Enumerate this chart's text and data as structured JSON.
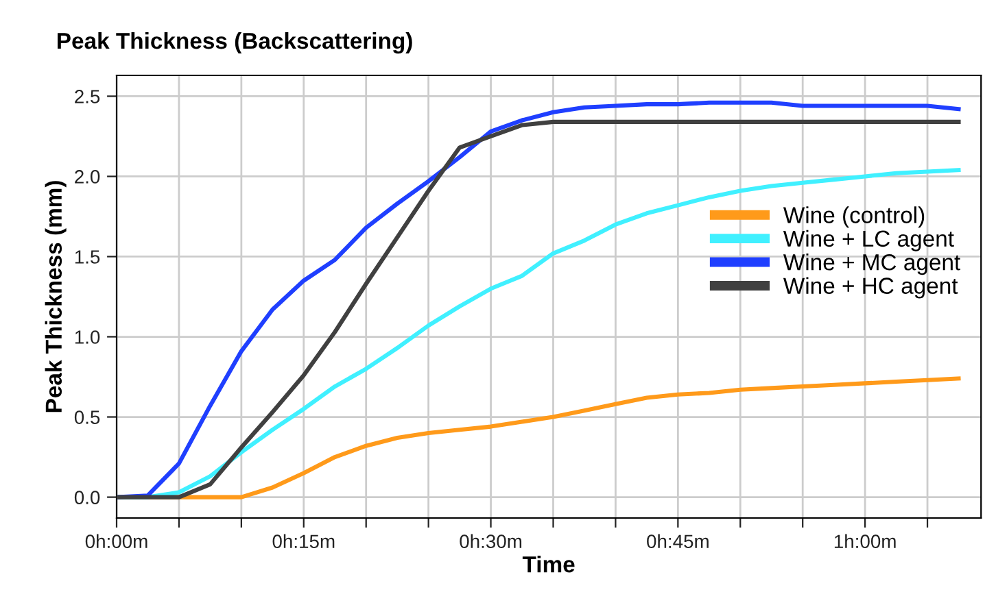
{
  "chart_data": {
    "type": "line",
    "title": "Peak Thickness (Backscattering)",
    "xlabel": "Time",
    "ylabel": "Peak Thickness (mm)",
    "categories": [
      "0h:00m",
      null,
      null,
      null,
      null,
      null,
      "0h:15m",
      null,
      null,
      null,
      null,
      null,
      "0h:30m",
      null,
      null,
      null,
      null,
      null,
      "0h:45m",
      null,
      null,
      null,
      null,
      null,
      "1h:00m",
      null,
      null,
      null
    ],
    "ylim": [
      -0.13,
      2.63
    ],
    "yticks": [
      {
        "value": 0,
        "label": "0.0"
      },
      0.5,
      {
        "value": 1,
        "label": "1.0"
      },
      1.5,
      {
        "value": 2,
        "label": "2.0"
      },
      2.5
    ],
    "grid": true,
    "legend": "right",
    "marker": "none",
    "line_style": "solid",
    "series": [
      {
        "name": "Wine (control)",
        "color": "#ff9a1a",
        "values": [
          0,
          0,
          0,
          0,
          0,
          0.06,
          0.15,
          0.25,
          0.32,
          0.37,
          0.4,
          0.42,
          0.44,
          0.47,
          0.5,
          0.54,
          0.58,
          0.62,
          0.64,
          0.65,
          0.67,
          0.68,
          0.69,
          0.7,
          0.71,
          0.72,
          0.73,
          0.74
        ]
      },
      {
        "name": "Wine + LC agent",
        "color": "#40f0ff",
        "values": [
          0,
          0,
          0.03,
          0.13,
          0.28,
          0.42,
          0.55,
          0.69,
          0.8,
          0.93,
          1.07,
          1.19,
          1.3,
          1.38,
          1.52,
          1.6,
          1.7,
          1.77,
          1.82,
          1.87,
          1.91,
          1.94,
          1.96,
          1.98,
          2.0,
          2.02,
          2.03,
          2.04
        ]
      },
      {
        "name": "Wine + MC agent",
        "color": "#1f3fff",
        "values": [
          0,
          0.01,
          0.21,
          0.57,
          0.91,
          1.17,
          1.35,
          1.48,
          1.68,
          1.83,
          1.97,
          2.12,
          2.28,
          2.35,
          2.4,
          2.43,
          2.44,
          2.45,
          2.45,
          2.46,
          2.46,
          2.46,
          2.44,
          2.44,
          2.44,
          2.44,
          2.44,
          2.42
        ]
      },
      {
        "name": "Wine + HC agent",
        "color": "#404040",
        "values": [
          0,
          0,
          0,
          0.08,
          0.31,
          0.53,
          0.76,
          1.03,
          1.33,
          1.62,
          1.91,
          2.18,
          2.25,
          2.32,
          2.34,
          2.34,
          2.34,
          2.34,
          2.34,
          2.34,
          2.34,
          2.34,
          2.34,
          2.34,
          2.34,
          2.34,
          2.34,
          2.34
        ]
      }
    ]
  }
}
